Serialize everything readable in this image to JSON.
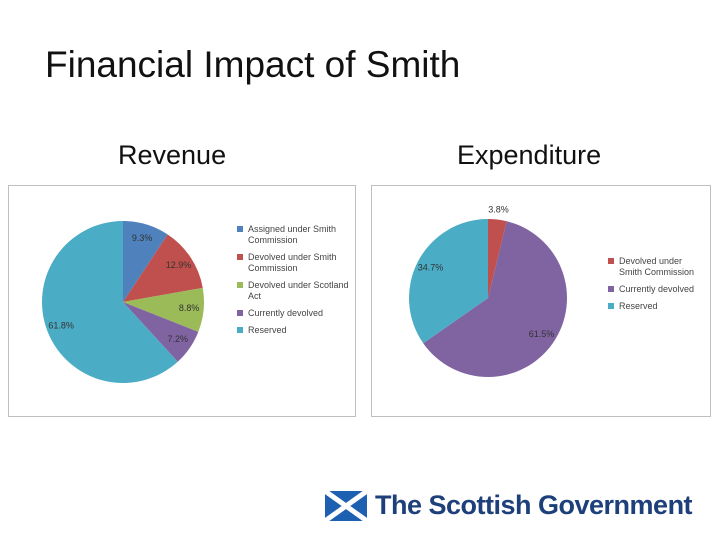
{
  "title": "Financial Impact of Smith",
  "chart_data": [
    {
      "type": "pie",
      "title": "Revenue",
      "categories": [
        "Assigned under Smith Commission",
        "Devolved under Smith Commission",
        "Devolved under Scotland Act",
        "Currently devolved",
        "Reserved"
      ],
      "values": [
        9.3,
        12.9,
        8.8,
        7.2,
        61.8
      ],
      "value_labels": [
        "9.3%",
        "12.9%",
        "8.8%",
        "7.2%",
        "61.8%"
      ],
      "colors": [
        "#4f81bd",
        "#c0504d",
        "#9bbb59",
        "#8064a2",
        "#4bacc6"
      ]
    },
    {
      "type": "pie",
      "title": "Expenditure",
      "categories": [
        "Devolved under Smith Commission",
        "Currently devolved",
        "Reserved"
      ],
      "values": [
        3.8,
        61.5,
        34.7
      ],
      "value_labels": [
        "3.8%",
        "61.5%",
        "34.7%"
      ],
      "colors": [
        "#c0504d",
        "#8064a2",
        "#4bacc6"
      ]
    }
  ],
  "logo": "The Scottish Government"
}
